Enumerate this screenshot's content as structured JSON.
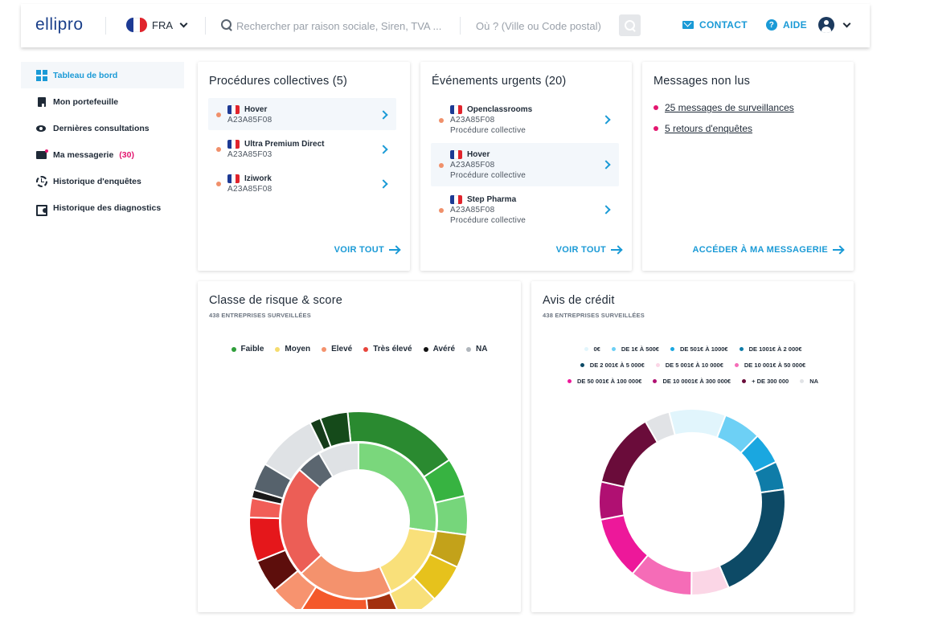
{
  "header": {
    "logo": "ellipro",
    "country": "FRA",
    "search_placeholder": "Rechercher par raison sociale, Siren, TVA ...",
    "location_placeholder": "Où ? (Ville ou Code postal)",
    "contact_label": "CONTACT",
    "help_label": "AIDE"
  },
  "sidebar": {
    "items": [
      {
        "label": "Tableau de bord",
        "icon": "dashboard-icon"
      },
      {
        "label": "Mon portefeuille",
        "icon": "bookmark-icon"
      },
      {
        "label": "Dernières consultations",
        "icon": "eye-icon"
      },
      {
        "label": "Ma messagerie",
        "icon": "mail-icon",
        "badge": "(30)"
      },
      {
        "label": "Historique d'enquêtes",
        "icon": "history-icon"
      },
      {
        "label": "Historique des diagnostics",
        "icon": "diagnostic-icon"
      }
    ]
  },
  "procedures": {
    "title": "Procédures collectives (5)",
    "items": [
      {
        "name": "Hover",
        "id": "A23A85F08"
      },
      {
        "name": "Ultra Premium Direct",
        "id": "A23A85F03"
      },
      {
        "name": "Iziwork",
        "id": "A23A85F08"
      }
    ],
    "see_all": "VOIR TOUT"
  },
  "events": {
    "title": "Événements urgents (20)",
    "items": [
      {
        "name": "Openclassrooms",
        "id": "A23A85F08",
        "type": "Procédure collective"
      },
      {
        "name": "Hover",
        "id": "A23A85F08",
        "type": "Procédure collective"
      },
      {
        "name": "Step Pharma",
        "id": "A23A85F08",
        "type": "Procédure collective"
      }
    ],
    "see_all": "VOIR TOUT"
  },
  "messages": {
    "title": "Messages non lus",
    "items": [
      "25 messages de surveillances",
      "5 retours d'enquêtes"
    ],
    "link": "ACCÉDER À MA MESSAGERIE"
  },
  "risk": {
    "title": "Classe de risque & score",
    "subtitle": "438 ENTREPRISES SURVEILLÉES"
  },
  "credit": {
    "title": "Avis de crédit",
    "subtitle": "438 ENTREPRISES SURVEILLÉES"
  },
  "chart_data": [
    {
      "type": "pie",
      "title": "Classe de risque & score",
      "legend": [
        "Faible",
        "Moyen",
        "Elevé",
        "Très élevé",
        "Avéré",
        "NA"
      ],
      "legend_colors": [
        "#2f9e3a",
        "#f5dc6e",
        "#f4926d",
        "#e8453c",
        "#111111",
        "#b0b6bc"
      ],
      "inner_ring": [
        {
          "label": "Faible",
          "value": 26,
          "color": "#7ad77c"
        },
        {
          "label": "Moyen",
          "value": 15,
          "color": "#f9e07a"
        },
        {
          "label": "Elevé",
          "value": 19,
          "color": "#f4926d"
        },
        {
          "label": "Très élevé",
          "value": 22,
          "color": "#ec5e56"
        },
        {
          "label": "Avéré",
          "value": 5,
          "color": "#5b6670"
        },
        {
          "label": "NA",
          "value": 8,
          "color": "#dfe2e5"
        }
      ],
      "outer_ring": [
        {
          "value": 21,
          "color": "#2a8a30"
        },
        {
          "value": 7,
          "color": "#37b341"
        },
        {
          "value": 7,
          "color": "#76d67b"
        },
        {
          "value": 6,
          "color": "#c3a21a"
        },
        {
          "value": 7,
          "color": "#e6c21c"
        },
        {
          "value": 7,
          "color": "#f8e07a"
        },
        {
          "value": 6,
          "color": "#a3300f"
        },
        {
          "value": 13,
          "color": "#f4592b"
        },
        {
          "value": 6,
          "color": "#f7936f"
        },
        {
          "value": 6,
          "color": "#5d0e0c"
        },
        {
          "value": 8,
          "color": "#e5171b"
        },
        {
          "value": 3.5,
          "color": "#f15e57"
        },
        {
          "value": 1.5,
          "color": "#1a1a1a"
        },
        {
          "value": 5,
          "color": "#56626c"
        },
        {
          "value": 11,
          "color": "#dfe2e5"
        },
        {
          "value": 2,
          "color": "#163c1a"
        },
        {
          "value": 5,
          "color": "#154a1a"
        }
      ]
    },
    {
      "type": "pie",
      "title": "Avis de crédit",
      "series": [
        {
          "label": "0€",
          "value": 9,
          "color": "#e1f5fc"
        },
        {
          "label": "DE 1€ À 500€",
          "value": 6,
          "color": "#6dd0f5"
        },
        {
          "label": "DE 501€ À 1000€",
          "value": 5,
          "color": "#1aa7e0"
        },
        {
          "label": "DE 1001€ À 2 000€",
          "value": 4.5,
          "color": "#0f7ca8"
        },
        {
          "label": "DE 2 001€ À 5 000€",
          "value": 19,
          "color": "#0d4a66"
        },
        {
          "label": "DE 5 001€ À 10 000€",
          "value": 6,
          "color": "#fbd6e6"
        },
        {
          "label": "DE 10 001€ À 50 000€",
          "value": 10,
          "color": "#f56cb7"
        },
        {
          "label": "DE 50 001€ À 100 000€",
          "value": 10,
          "color": "#ed189a"
        },
        {
          "label": "DE 10 0001€ À 300 000€",
          "value": 6,
          "color": "#b01072"
        },
        {
          "label": "+ DE 300 000",
          "value": 12,
          "color": "#6a0c3a"
        },
        {
          "label": "NA",
          "value": 4,
          "color": "#e1e3e6"
        }
      ]
    }
  ]
}
